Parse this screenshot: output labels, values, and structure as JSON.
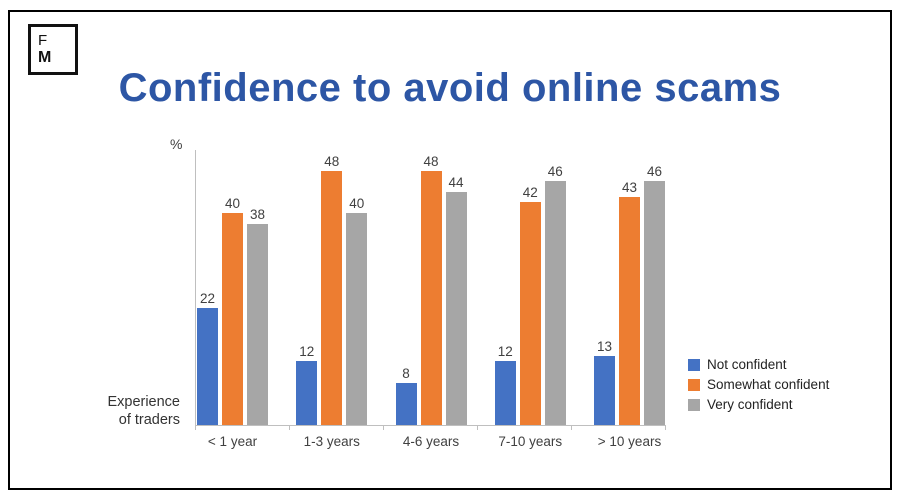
{
  "logo": {
    "top": "F",
    "bottom": "M"
  },
  "title": "Confidence to avoid online scams",
  "axis_label": {
    "line1": "Experience",
    "line2": "of traders"
  },
  "chart_data": {
    "type": "bar",
    "title": "Confidence to avoid online scams",
    "ylabel": "%",
    "xlabel": "Experience of traders",
    "categories": [
      "< 1 year",
      "1-3 years",
      "4-6 years",
      "7-10 years",
      "> 10 years"
    ],
    "series": [
      {
        "name": "Not confident",
        "color": "#4472c4",
        "values": [
          22,
          12,
          8,
          12,
          13
        ]
      },
      {
        "name": "Somewhat confident",
        "color": "#ed7d31",
        "values": [
          40,
          48,
          48,
          42,
          43
        ]
      },
      {
        "name": "Very confident",
        "color": "#a6a6a6",
        "values": [
          38,
          40,
          44,
          46,
          46
        ]
      }
    ],
    "ylim": [
      0,
      50
    ],
    "grid": false,
    "legend_position": "right",
    "title_color": "#2d56a5"
  }
}
